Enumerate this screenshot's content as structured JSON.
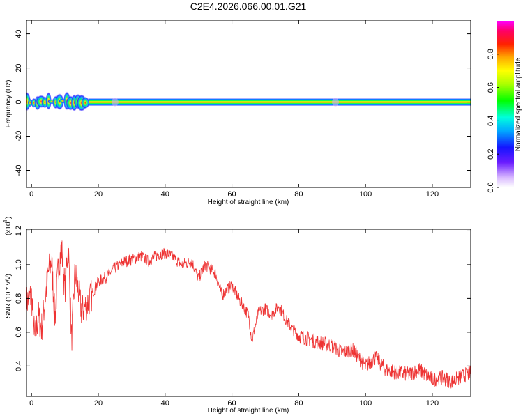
{
  "chart_data": [
    {
      "type": "heatmap",
      "title": "C2E4.2026.066.00.01.G21",
      "xlabel": "Height of straight line (km)",
      "ylabel": "Frequency (Hz)",
      "xlim": [
        -1.5,
        131.5
      ],
      "ylim": [
        -50,
        48
      ],
      "xticks": [
        "0",
        "20",
        "40",
        "60",
        "80",
        "100",
        "120"
      ],
      "yticks": [
        "-40",
        "-20",
        "0",
        "20",
        "40"
      ],
      "colorbar": {
        "label": "Normalized spectral amplitude",
        "range": [
          0,
          1
        ],
        "ticks": [
          "0.0",
          "0.2",
          "0.4",
          "0.6",
          "0.8"
        ]
      },
      "features": [
        {
          "x_range": [
            -1.5,
            17
          ],
          "freq_spread_hz": 5,
          "peak_amplitude": 1.0
        },
        {
          "x_range": [
            17,
            131.5
          ],
          "freq_center_hz": 0,
          "freq_halfwidth_hz": 2,
          "amplitude_at_center": 1.0
        }
      ]
    },
    {
      "type": "line",
      "xlabel": "Height of straight line (km)",
      "ylabel": "SNR (10 * v/v)",
      "yscale_label": "(x10",
      "yscale_exponent": "4",
      "xlim": [
        -1.5,
        131.5
      ],
      "ylim": [
        0.22,
        1.21
      ],
      "xticks": [
        "0",
        "20",
        "40",
        "60",
        "80",
        "100",
        "120"
      ],
      "yticks": [
        "0.4",
        "0.6",
        "0.8",
        "1.0",
        "1.2"
      ],
      "line_color": "#ee3333",
      "x": [
        -1.5,
        0,
        1,
        2,
        3,
        4,
        5,
        6,
        7,
        8,
        9,
        10,
        11,
        12,
        13,
        14,
        15,
        17,
        20,
        22,
        25,
        28,
        30,
        33,
        35,
        38,
        40,
        42,
        45,
        48,
        50,
        52,
        55,
        57,
        60,
        62,
        65,
        66,
        68,
        70,
        72,
        74,
        76,
        78,
        80,
        83,
        86,
        90,
        93,
        96,
        100,
        103,
        106,
        110,
        113,
        116,
        120,
        123,
        126,
        129,
        131.5
      ],
      "y": [
        0.78,
        0.82,
        0.55,
        0.7,
        0.62,
        0.78,
        0.95,
        1.03,
        0.68,
        0.98,
        1.1,
        0.85,
        1.12,
        0.55,
        0.95,
        0.85,
        0.72,
        0.78,
        0.9,
        0.92,
        0.98,
        1.02,
        1.03,
        1.05,
        1.02,
        1.06,
        1.07,
        1.05,
        1.0,
        1.02,
        0.92,
        1.0,
        0.95,
        0.82,
        0.88,
        0.8,
        0.7,
        0.55,
        0.72,
        0.74,
        0.7,
        0.76,
        0.68,
        0.62,
        0.58,
        0.56,
        0.54,
        0.52,
        0.48,
        0.5,
        0.4,
        0.45,
        0.38,
        0.36,
        0.35,
        0.38,
        0.32,
        0.33,
        0.31,
        0.34,
        0.36
      ]
    }
  ]
}
